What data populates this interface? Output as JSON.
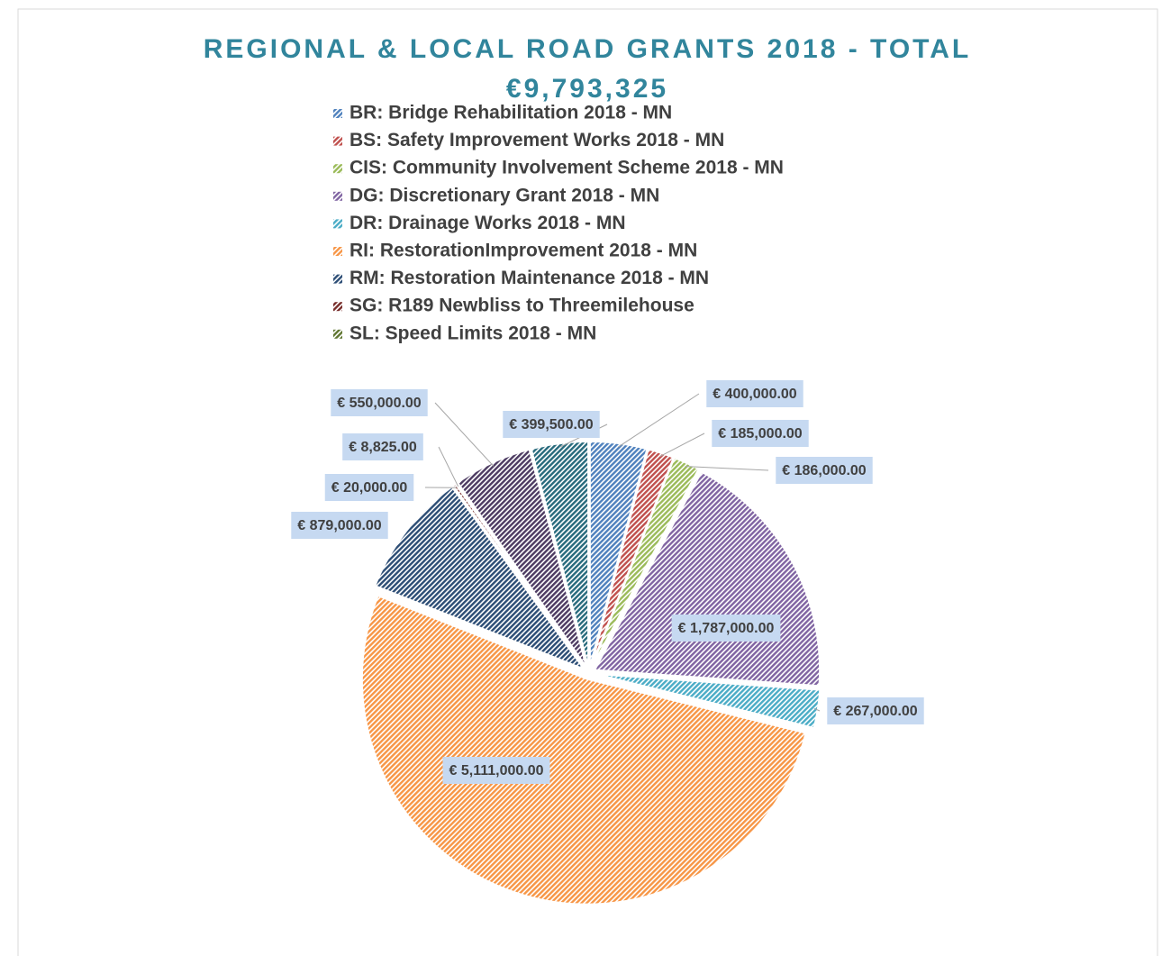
{
  "chart_data": {
    "type": "pie",
    "title": [
      "REGIONAL & LOCAL ROAD GRANTS 2018 - TOTAL",
      "€9,793,325"
    ],
    "categories": [
      "BR: Bridge Rehabilitation 2018 - MN",
      "BS: Safety Improvement Works 2018 - MN",
      "CIS: Community Involvement Scheme 2018 - MN",
      "DG: Discretionary Grant 2018 - MN",
      "DR: Drainage Works 2018 - MN",
      "RI: RestorationImprovement 2018 - MN",
      "RM: Restoration Maintenance 2018 - MN",
      "SG: R189 Newbliss to Threemilehouse",
      "SL: Speed Limits 2018 - MN",
      null,
      null
    ],
    "values": [
      400000,
      185000,
      186000,
      1787000,
      267000,
      5111000,
      879000,
      20000,
      8825,
      550000,
      399500
    ],
    "value_labels": [
      "€ 400,000.00",
      "€ 185,000.00",
      "€ 186,000.00",
      "€ 1,787,000.00",
      "€ 267,000.00",
      "€ 5,111,000.00",
      "€ 879,000.00",
      "€ 20,000.00",
      "€ 8,825.00",
      "€ 550,000.00",
      "€ 399,500.00"
    ],
    "colors": [
      "#4f81bd",
      "#c0504d",
      "#9bbb59",
      "#8064a2",
      "#4bacc6",
      "#f79646",
      "#2c4d75",
      "#772c2a",
      "#5f7530",
      "#4d3b62",
      "#276a7c"
    ],
    "legend": "top"
  }
}
